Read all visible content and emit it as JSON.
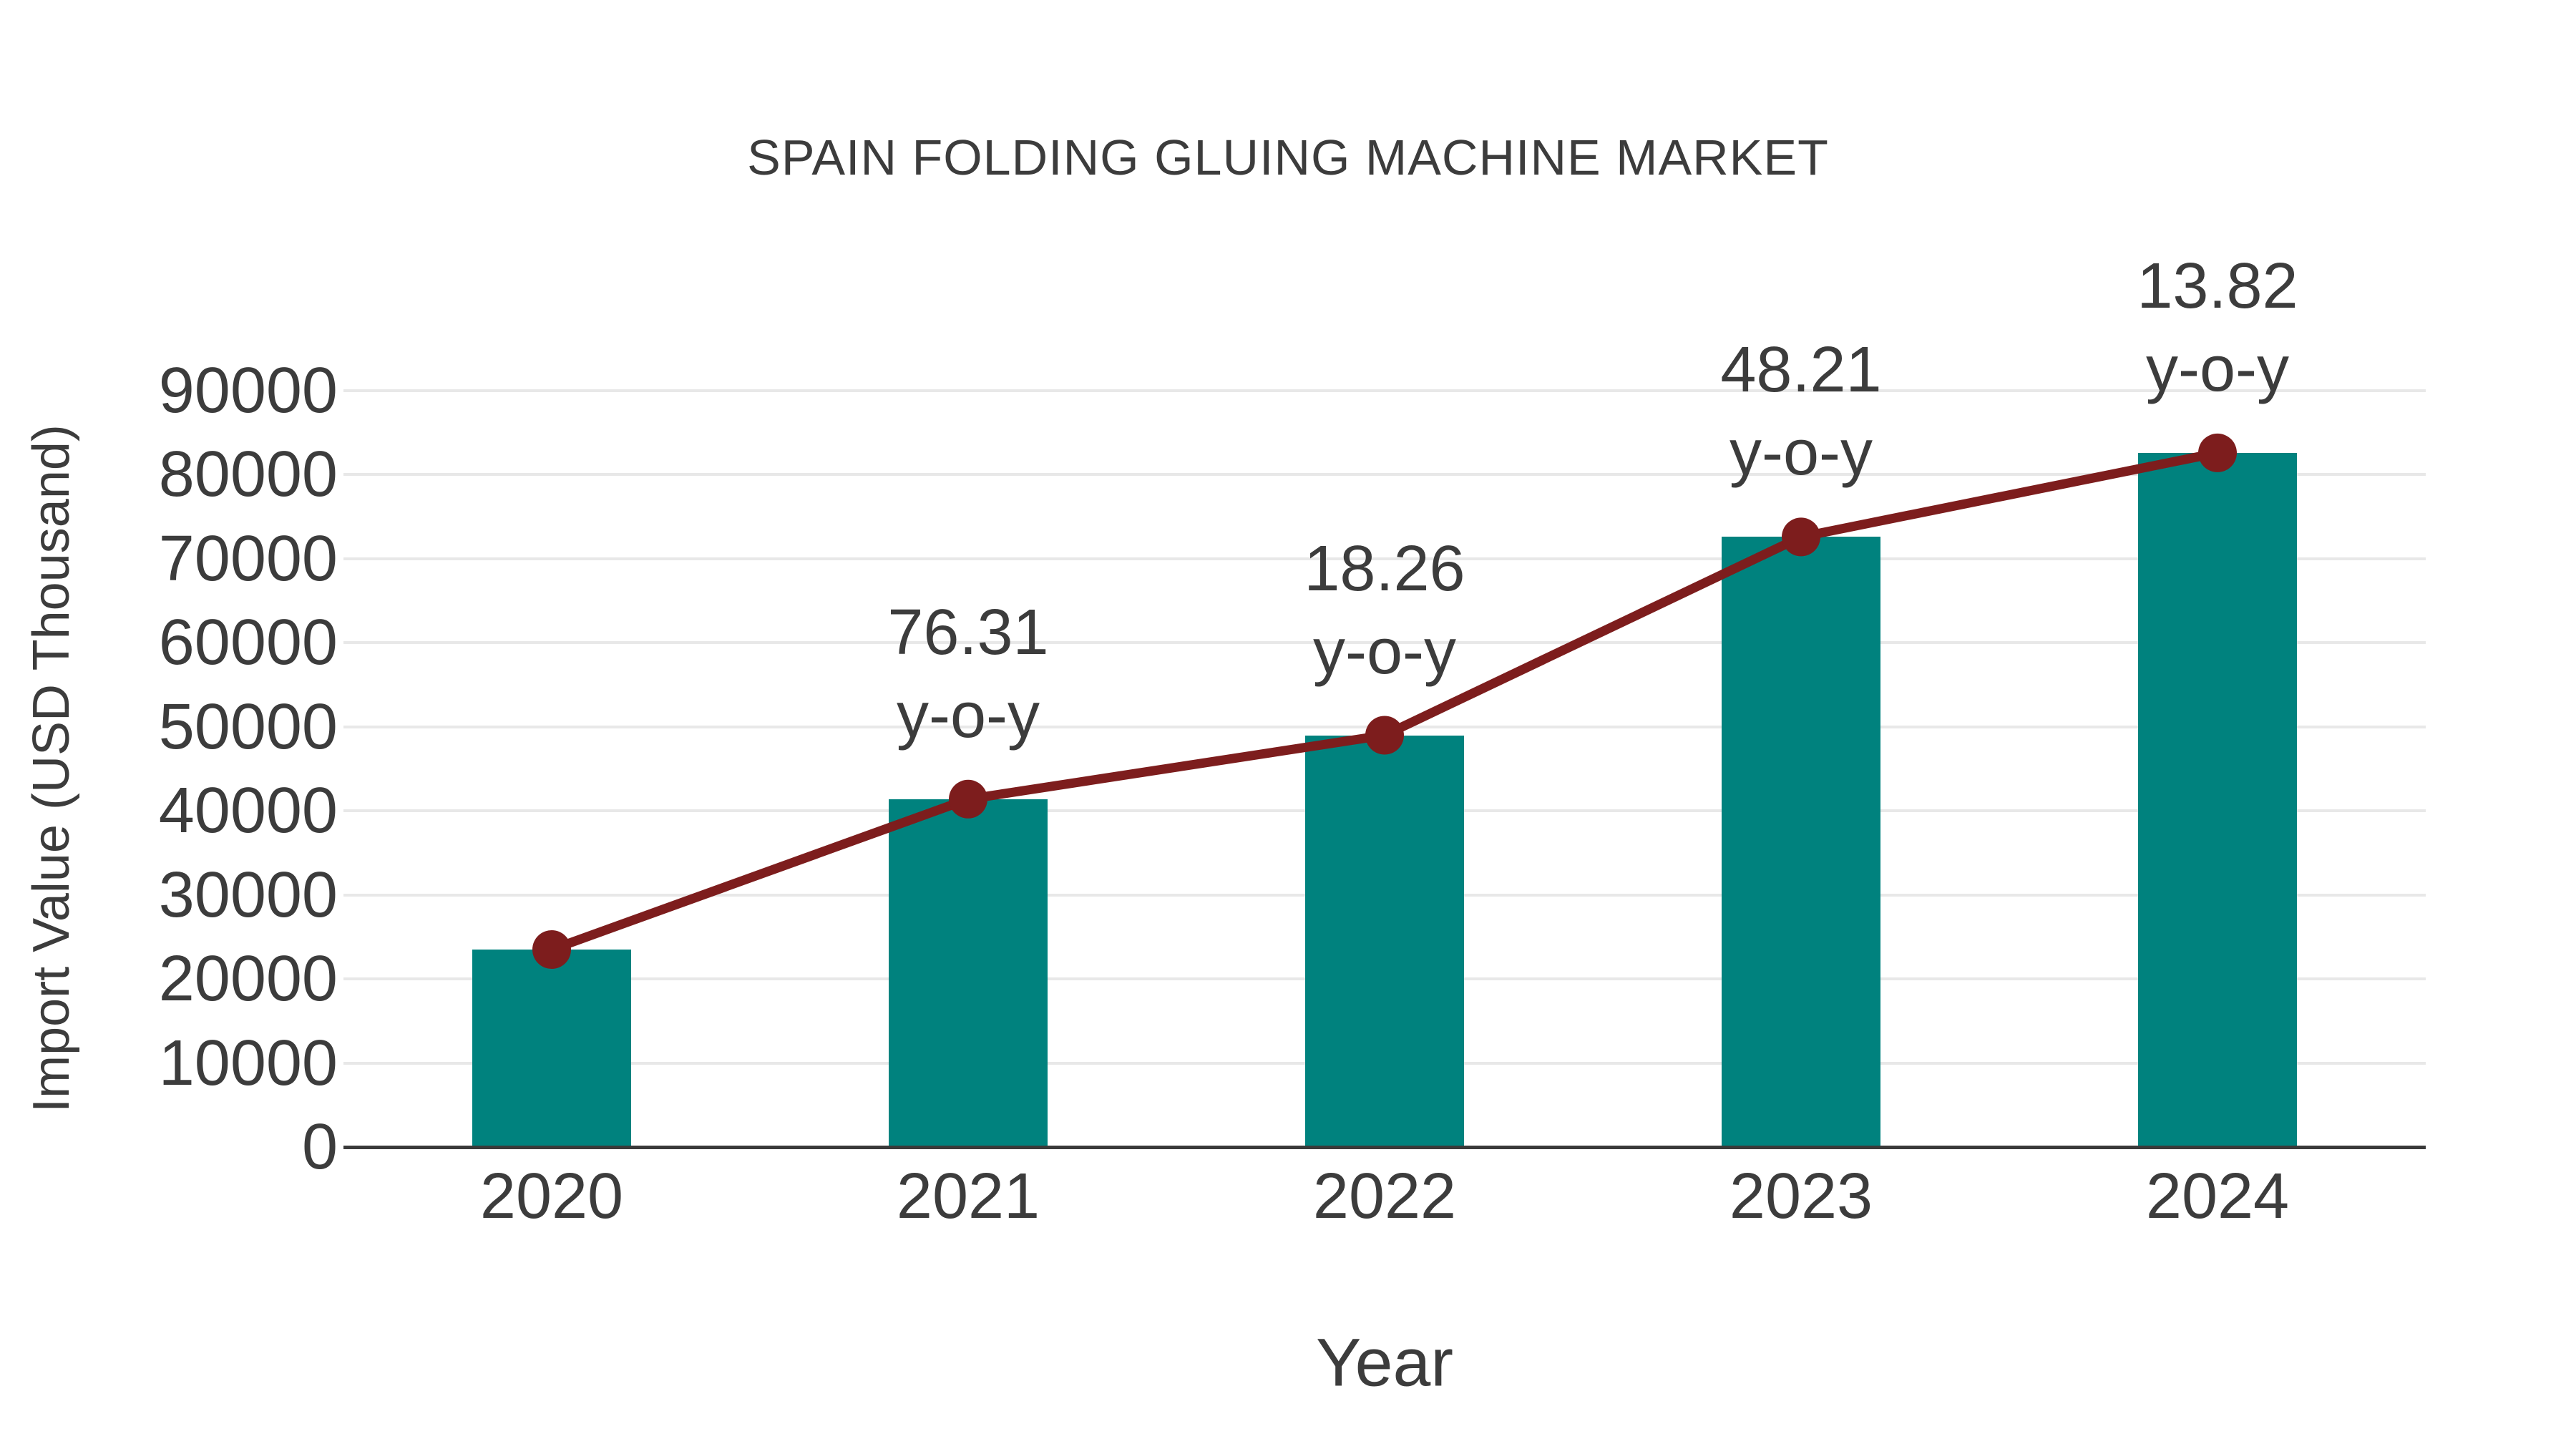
{
  "title": "SPAIN FOLDING GLUING MACHINE MARKET",
  "chart_data": {
    "type": "bar",
    "categories": [
      "2020",
      "2021",
      "2022",
      "2023",
      "2024"
    ],
    "series": [
      {
        "name": "Import Value (bars)",
        "type": "bar",
        "values": [
          23500,
          41400,
          49000,
          72600,
          82600
        ]
      },
      {
        "name": "Import Value (trend line)",
        "type": "line",
        "values": [
          23500,
          41400,
          49000,
          72600,
          82600
        ]
      }
    ],
    "annotations": [
      {
        "category": "2021",
        "value": 76.31,
        "label_line1": "76.31",
        "label_line2": "y-o-y"
      },
      {
        "category": "2022",
        "value": 18.26,
        "label_line1": "18.26",
        "label_line2": "y-o-y"
      },
      {
        "category": "2023",
        "value": 48.21,
        "label_line1": "48.21",
        "label_line2": "y-o-y"
      },
      {
        "category": "2024",
        "value": 13.82,
        "label_line1": "13.82",
        "label_line2": "y-o-y"
      }
    ],
    "title": "SPAIN FOLDING GLUING MACHINE MARKET",
    "xlabel": "Year",
    "ylabel": "Import Value (USD Thousand)",
    "ylim": [
      0,
      90000
    ],
    "ytick_step": 10000,
    "ytick_labels": [
      "0",
      "10000",
      "20000",
      "30000",
      "40000",
      "50000",
      "60000",
      "70000",
      "80000",
      "90000"
    ],
    "grid": true,
    "legend": "none",
    "colors": {
      "bar": "#00827E",
      "line": "#7D1D1D",
      "marker": "#7D1D1D",
      "text": "#3C3C3C",
      "grid": "#E8E8E8",
      "axis": "#3A3A3A",
      "background": "#FFFFFF"
    }
  }
}
